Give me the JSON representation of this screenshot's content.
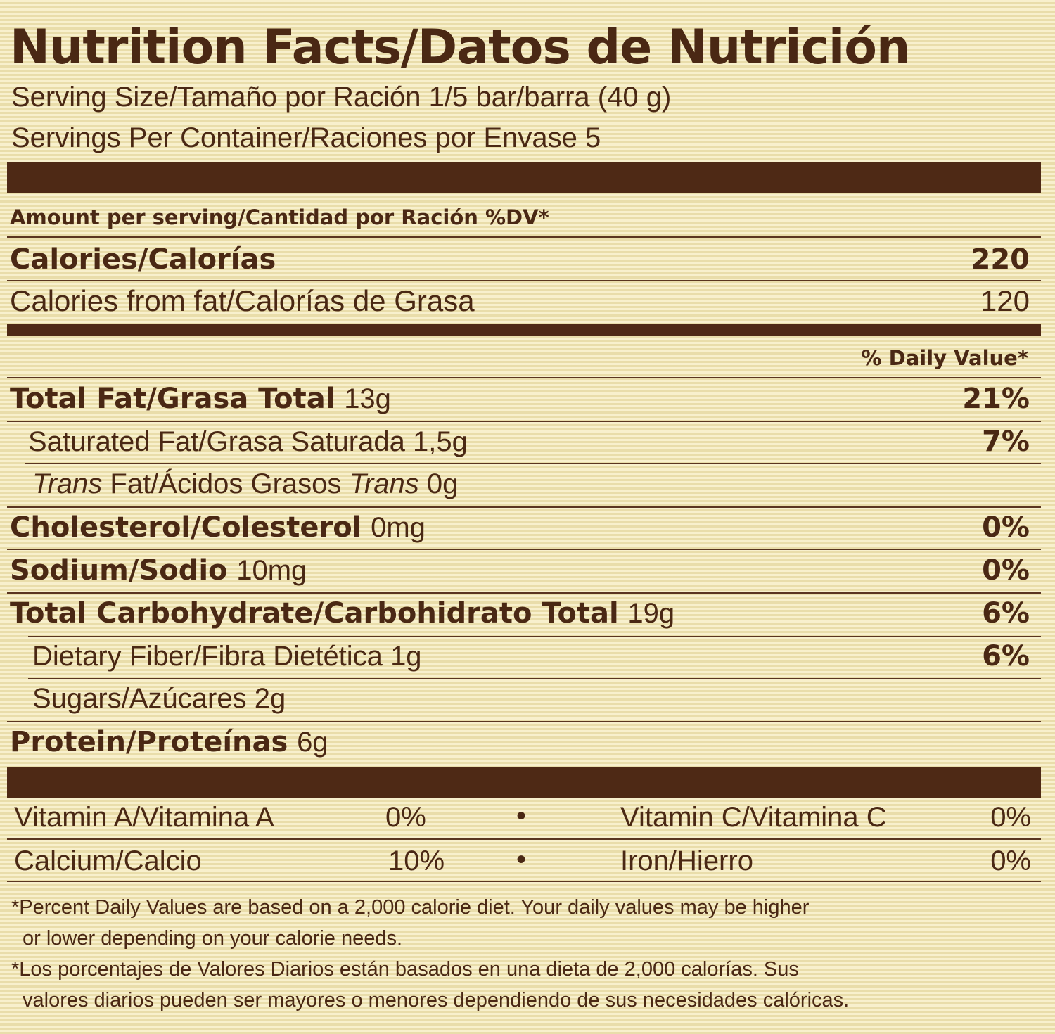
{
  "title": "Nutrition Facts/Datos de Nutrición",
  "serving_size": "Serving Size/Tamaño por Ración 1/5 bar/barra (40 g)",
  "servings_per_container": "Servings Per Container/Raciones por Envase 5",
  "amount_header": "Amount per serving/Cantidad por Ración %DV*",
  "calories": {
    "label": "Calories/Calorías",
    "value": "220"
  },
  "calories_fat": {
    "label": "Calories from fat/Calorías de Grasa",
    "value": "120"
  },
  "dv_header": "% Daily Value*",
  "nutrients": {
    "total_fat": {
      "label": "Total Fat/Grasa Total",
      "amount": "13g",
      "dv": "21%"
    },
    "sat_fat": {
      "label": "Saturated Fat/Grasa Saturada",
      "amount": "1,5g",
      "dv": "7%"
    },
    "trans_fat": {
      "trans1": "Trans",
      "mid": " Fat/Ácidos Grasos ",
      "trans2": "Trans",
      "amount": " 0g"
    },
    "cholesterol": {
      "label": "Cholesterol/Colesterol",
      "amount": "0mg",
      "dv": "0%"
    },
    "sodium": {
      "label": "Sodium/Sodio",
      "amount": "10mg",
      "dv": "0%"
    },
    "carbs": {
      "label": "Total Carbohydrate/Carbohidrato Total",
      "amount": "19g",
      "dv": "6%"
    },
    "fiber": {
      "label": "Dietary Fiber/Fibra Dietética",
      "amount": "1g",
      "dv": "6%"
    },
    "sugars": {
      "label": "Sugars/Azúcares",
      "amount": "2g"
    },
    "protein": {
      "label": "Protein/Proteínas",
      "amount": "6g"
    }
  },
  "vitamins": {
    "vit_a": {
      "label": "Vitamin A/Vitamina A",
      "value": "0%"
    },
    "vit_c": {
      "label": "Vitamin C/Vitamina C",
      "value": "0%"
    },
    "calcium": {
      "label": "Calcium/Calcio",
      "value": "10%"
    },
    "iron": {
      "label": "Iron/Hierro",
      "value": "0%"
    },
    "bullet": "•"
  },
  "footnote_en_1": "*Percent Daily Values are based on a 2,000 calorie diet. Your daily values may be higher",
  "footnote_en_2": "or lower depending on your calorie needs.",
  "footnote_es_1": "*Los porcentajes de Valores Diarios están basados en una dieta de 2,000 calorías. Sus",
  "footnote_es_2": "valores diarios pueden ser mayores o menores dependiendo de sus necesidades calóricas."
}
